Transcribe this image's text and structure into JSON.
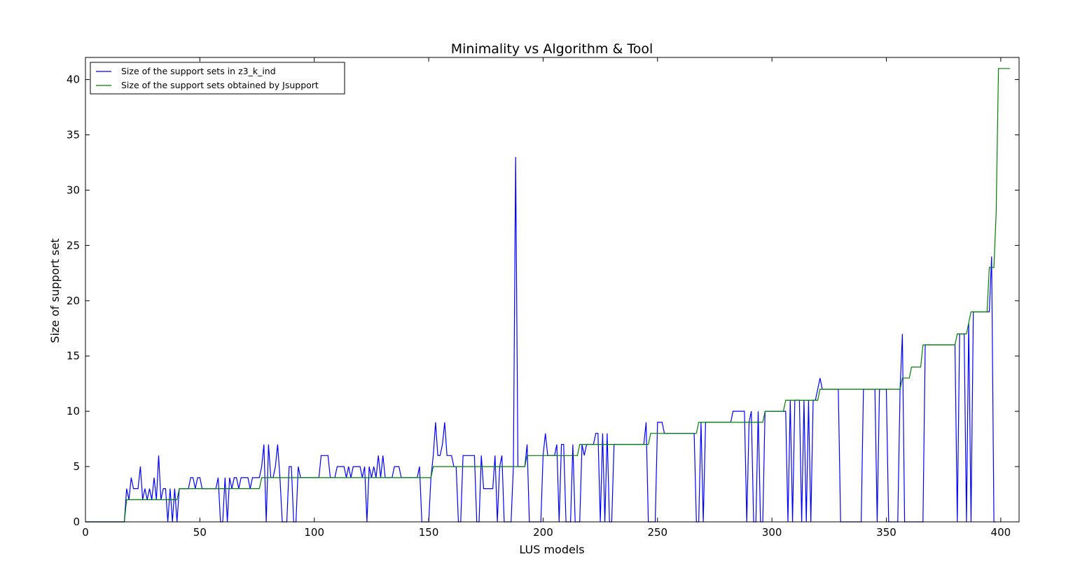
{
  "chart_data": {
    "type": "line",
    "title": "Minimality vs Algorithm & Tool",
    "xlabel": "LUS models",
    "ylabel": "Size of support set",
    "xlim": [
      0,
      408
    ],
    "ylim": [
      0,
      42
    ],
    "xticks": [
      0,
      50,
      100,
      150,
      200,
      250,
      300,
      350,
      400
    ],
    "yticks": [
      0,
      5,
      10,
      15,
      20,
      25,
      30,
      35,
      40
    ],
    "grid": false,
    "legend_position": "top-left",
    "series": [
      {
        "name": "Size of the support sets in z3_k_ind",
        "color": "#0000ff",
        "points": [
          [
            0,
            0
          ],
          [
            17,
            0
          ],
          [
            18,
            3
          ],
          [
            19,
            2
          ],
          [
            20,
            4
          ],
          [
            21,
            3
          ],
          [
            23,
            3
          ],
          [
            24,
            5
          ],
          [
            25,
            2
          ],
          [
            26,
            3
          ],
          [
            27,
            2
          ],
          [
            28,
            3
          ],
          [
            29,
            2
          ],
          [
            30,
            4
          ],
          [
            31,
            2
          ],
          [
            32,
            6
          ],
          [
            33,
            2
          ],
          [
            34,
            3
          ],
          [
            35,
            3
          ],
          [
            36,
            0
          ],
          [
            37,
            3
          ],
          [
            38,
            0
          ],
          [
            39,
            3
          ],
          [
            40,
            0
          ],
          [
            41,
            3
          ],
          [
            45,
            3
          ],
          [
            46,
            4
          ],
          [
            47,
            4
          ],
          [
            48,
            3
          ],
          [
            49,
            4
          ],
          [
            50,
            4
          ],
          [
            51,
            3
          ],
          [
            57,
            3
          ],
          [
            58,
            4
          ],
          [
            59,
            0
          ],
          [
            60,
            0
          ],
          [
            61,
            4
          ],
          [
            62,
            0
          ],
          [
            63,
            4
          ],
          [
            64,
            3
          ],
          [
            65,
            4
          ],
          [
            66,
            4
          ],
          [
            67,
            3
          ],
          [
            68,
            4
          ],
          [
            71,
            4
          ],
          [
            72,
            3
          ],
          [
            73,
            4
          ],
          [
            76,
            4
          ],
          [
            77,
            5
          ],
          [
            78,
            7
          ],
          [
            79,
            0
          ],
          [
            80,
            7
          ],
          [
            81,
            4
          ],
          [
            82,
            4
          ],
          [
            83,
            5
          ],
          [
            84,
            7
          ],
          [
            85,
            4
          ],
          [
            86,
            0
          ],
          [
            88,
            0
          ],
          [
            89,
            5
          ],
          [
            90,
            5
          ],
          [
            91,
            0
          ],
          [
            92,
            0
          ],
          [
            93,
            5
          ],
          [
            94,
            4
          ],
          [
            102,
            4
          ],
          [
            103,
            6
          ],
          [
            106,
            6
          ],
          [
            107,
            4
          ],
          [
            109,
            4
          ],
          [
            110,
            5
          ],
          [
            113,
            5
          ],
          [
            114,
            4
          ],
          [
            115,
            5
          ],
          [
            116,
            4
          ],
          [
            117,
            5
          ],
          [
            120,
            5
          ],
          [
            121,
            4
          ],
          [
            122,
            5
          ],
          [
            123,
            0
          ],
          [
            124,
            5
          ],
          [
            125,
            4
          ],
          [
            126,
            5
          ],
          [
            127,
            4
          ],
          [
            128,
            6
          ],
          [
            129,
            4
          ],
          [
            130,
            6
          ],
          [
            131,
            4
          ],
          [
            134,
            4
          ],
          [
            135,
            5
          ],
          [
            137,
            5
          ],
          [
            138,
            4
          ],
          [
            145,
            4
          ],
          [
            146,
            5
          ],
          [
            147,
            0
          ],
          [
            150,
            0
          ],
          [
            151,
            4
          ],
          [
            152,
            6
          ],
          [
            153,
            9
          ],
          [
            154,
            6
          ],
          [
            155,
            6
          ],
          [
            156,
            7
          ],
          [
            157,
            9
          ],
          [
            158,
            6
          ],
          [
            160,
            6
          ],
          [
            161,
            5
          ],
          [
            162,
            5
          ],
          [
            163,
            0
          ],
          [
            164,
            0
          ],
          [
            165,
            6
          ],
          [
            170,
            6
          ],
          [
            171,
            0
          ],
          [
            172,
            0
          ],
          [
            173,
            6
          ],
          [
            174,
            3
          ],
          [
            178,
            3
          ],
          [
            179,
            6
          ],
          [
            180,
            0
          ],
          [
            181,
            5
          ],
          [
            182,
            6
          ],
          [
            183,
            0
          ],
          [
            186,
            0
          ],
          [
            187,
            5
          ],
          [
            188,
            33
          ],
          [
            189,
            5
          ],
          [
            192,
            5
          ],
          [
            193,
            7
          ],
          [
            194,
            0
          ],
          [
            199,
            0
          ],
          [
            200,
            6
          ],
          [
            201,
            8
          ],
          [
            202,
            6
          ],
          [
            205,
            6
          ],
          [
            206,
            7
          ],
          [
            207,
            0
          ],
          [
            208,
            7
          ],
          [
            209,
            7
          ],
          [
            210,
            0
          ],
          [
            212,
            0
          ],
          [
            213,
            7
          ],
          [
            214,
            0
          ],
          [
            216,
            0
          ],
          [
            217,
            7
          ],
          [
            218,
            6
          ],
          [
            219,
            7
          ],
          [
            222,
            7
          ],
          [
            223,
            8
          ],
          [
            224,
            8
          ],
          [
            225,
            0
          ],
          [
            226,
            8
          ],
          [
            227,
            0
          ],
          [
            228,
            8
          ],
          [
            229,
            0
          ],
          [
            230,
            0
          ],
          [
            231,
            7
          ],
          [
            244,
            7
          ],
          [
            245,
            9
          ],
          [
            246,
            0
          ],
          [
            249,
            0
          ],
          [
            250,
            9
          ],
          [
            252,
            9
          ],
          [
            253,
            8
          ],
          [
            266,
            8
          ],
          [
            267,
            0
          ],
          [
            268,
            0
          ],
          [
            269,
            9
          ],
          [
            270,
            0
          ],
          [
            271,
            9
          ],
          [
            282,
            9
          ],
          [
            283,
            10
          ],
          [
            288,
            10
          ],
          [
            289,
            0
          ],
          [
            290,
            9
          ],
          [
            291,
            10
          ],
          [
            292,
            0
          ],
          [
            293,
            0
          ],
          [
            294,
            10
          ],
          [
            295,
            0
          ],
          [
            296,
            0
          ],
          [
            297,
            10
          ],
          [
            306,
            10
          ],
          [
            307,
            0
          ],
          [
            308,
            11
          ],
          [
            309,
            0
          ],
          [
            310,
            11
          ],
          [
            312,
            11
          ],
          [
            313,
            0
          ],
          [
            314,
            11
          ],
          [
            315,
            0
          ],
          [
            316,
            11
          ],
          [
            317,
            0
          ],
          [
            318,
            11
          ],
          [
            319,
            11
          ],
          [
            320,
            12
          ],
          [
            321,
            13
          ],
          [
            322,
            12
          ],
          [
            329,
            12
          ],
          [
            330,
            0
          ],
          [
            339,
            0
          ],
          [
            340,
            12
          ],
          [
            345,
            12
          ],
          [
            346,
            0
          ],
          [
            347,
            12
          ],
          [
            350,
            12
          ],
          [
            351,
            0
          ],
          [
            355,
            0
          ],
          [
            356,
            12
          ],
          [
            357,
            17
          ],
          [
            358,
            0
          ],
          [
            366,
            0
          ],
          [
            367,
            16
          ],
          [
            380,
            16
          ],
          [
            381,
            0
          ],
          [
            382,
            17
          ],
          [
            384,
            17
          ],
          [
            385,
            0
          ],
          [
            386,
            18
          ],
          [
            387,
            0
          ],
          [
            388,
            19
          ],
          [
            395,
            19
          ],
          [
            396,
            24
          ],
          [
            397,
            0
          ],
          [
            398,
            0
          ]
        ]
      },
      {
        "name": "Size of the support sets obtained by Jsupport",
        "color": "#008000",
        "points": [
          [
            0,
            0
          ],
          [
            17,
            0
          ],
          [
            18,
            2
          ],
          [
            40,
            2
          ],
          [
            41,
            3
          ],
          [
            76,
            3
          ],
          [
            77,
            4
          ],
          [
            151,
            4
          ],
          [
            152,
            5
          ],
          [
            192,
            5
          ],
          [
            193,
            6
          ],
          [
            215,
            6
          ],
          [
            216,
            7
          ],
          [
            246,
            7
          ],
          [
            247,
            8
          ],
          [
            267,
            8
          ],
          [
            268,
            9
          ],
          [
            296,
            9
          ],
          [
            297,
            10
          ],
          [
            305,
            10
          ],
          [
            306,
            11
          ],
          [
            320,
            11
          ],
          [
            321,
            12
          ],
          [
            356,
            12
          ],
          [
            357,
            13
          ],
          [
            360,
            13
          ],
          [
            361,
            14
          ],
          [
            365,
            14
          ],
          [
            366,
            16
          ],
          [
            380,
            16
          ],
          [
            381,
            17
          ],
          [
            385,
            17
          ],
          [
            386,
            18
          ],
          [
            387,
            19
          ],
          [
            394,
            19
          ],
          [
            395,
            23
          ],
          [
            397,
            23
          ],
          [
            398,
            28
          ],
          [
            399,
            41
          ],
          [
            404,
            41
          ]
        ]
      }
    ]
  }
}
